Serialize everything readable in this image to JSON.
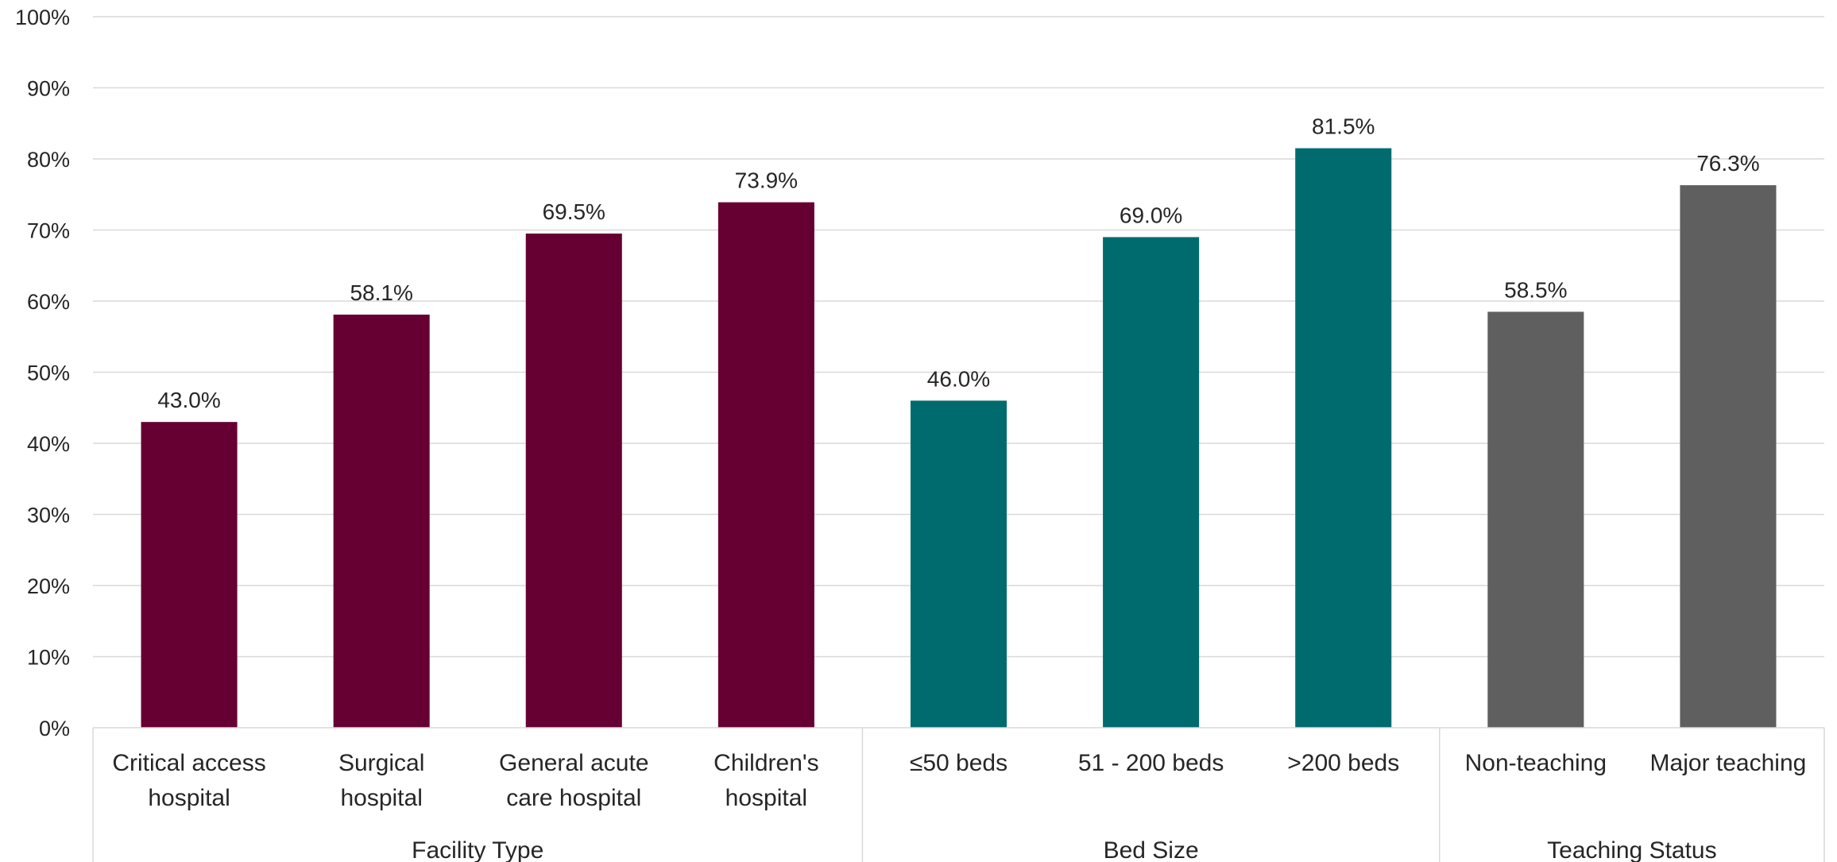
{
  "chart_data": {
    "type": "bar",
    "ylim": [
      0,
      100
    ],
    "yticks": [
      "0%",
      "10%",
      "20%",
      "30%",
      "40%",
      "50%",
      "60%",
      "70%",
      "80%",
      "90%",
      "100%"
    ],
    "grid": true,
    "groups": [
      {
        "name": "Facility Type",
        "color": "#660033",
        "categories": [
          {
            "label": [
              "Critical access",
              "hospital"
            ],
            "value": 43.0,
            "data_label": "43.0%"
          },
          {
            "label": [
              "Surgical",
              "hospital"
            ],
            "value": 58.1,
            "data_label": "58.1%"
          },
          {
            "label": [
              "General acute",
              "care hospital"
            ],
            "value": 69.5,
            "data_label": "69.5%"
          },
          {
            "label": [
              "Children's",
              "hospital"
            ],
            "value": 73.9,
            "data_label": "73.9%"
          }
        ]
      },
      {
        "name": "Bed Size",
        "color": "#006B6E",
        "categories": [
          {
            "label": [
              "≤50 beds"
            ],
            "value": 46.0,
            "data_label": "46.0%"
          },
          {
            "label": [
              "51 - 200 beds"
            ],
            "value": 69.0,
            "data_label": "69.0%"
          },
          {
            "label": [
              ">200 beds"
            ],
            "value": 81.5,
            "data_label": "81.5%"
          }
        ]
      },
      {
        "name": "Teaching Status",
        "color": "#5F5F5F",
        "categories": [
          {
            "label": [
              "Non-teaching"
            ],
            "value": 58.5,
            "data_label": "58.5%"
          },
          {
            "label": [
              "Major teaching"
            ],
            "value": 76.3,
            "data_label": "76.3%"
          }
        ]
      }
    ]
  }
}
